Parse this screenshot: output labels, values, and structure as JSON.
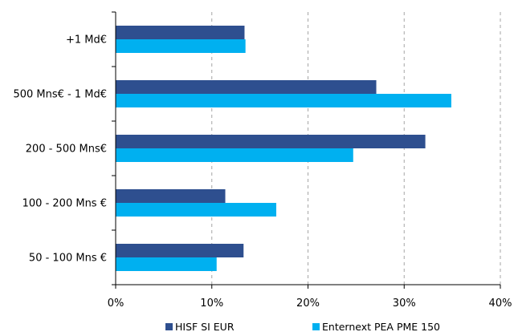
{
  "chart_data": {
    "type": "bar",
    "orientation": "horizontal",
    "title": "",
    "xlabel": "",
    "ylabel": "",
    "categories": [
      "50 - 100 Mns €",
      "100 - 200 Mns €",
      "200 - 500 Mns€",
      "500 Mns€ - 1 Md€",
      "+1 Md€"
    ],
    "series": [
      {
        "name": "HISF SI EUR",
        "color": "#2E4F8F",
        "values": [
          13.3,
          11.4,
          32.2,
          27.1,
          13.4
        ]
      },
      {
        "name": "Enternext PEA PME 150",
        "color": "#00B0F0",
        "values": [
          10.5,
          16.7,
          24.7,
          34.9,
          13.5
        ]
      }
    ],
    "xlim": [
      0,
      40
    ],
    "xticks": [
      "0%",
      "10%",
      "20%",
      "30%",
      "40%"
    ],
    "grid": "vertical dashed",
    "legend_position": "bottom"
  }
}
